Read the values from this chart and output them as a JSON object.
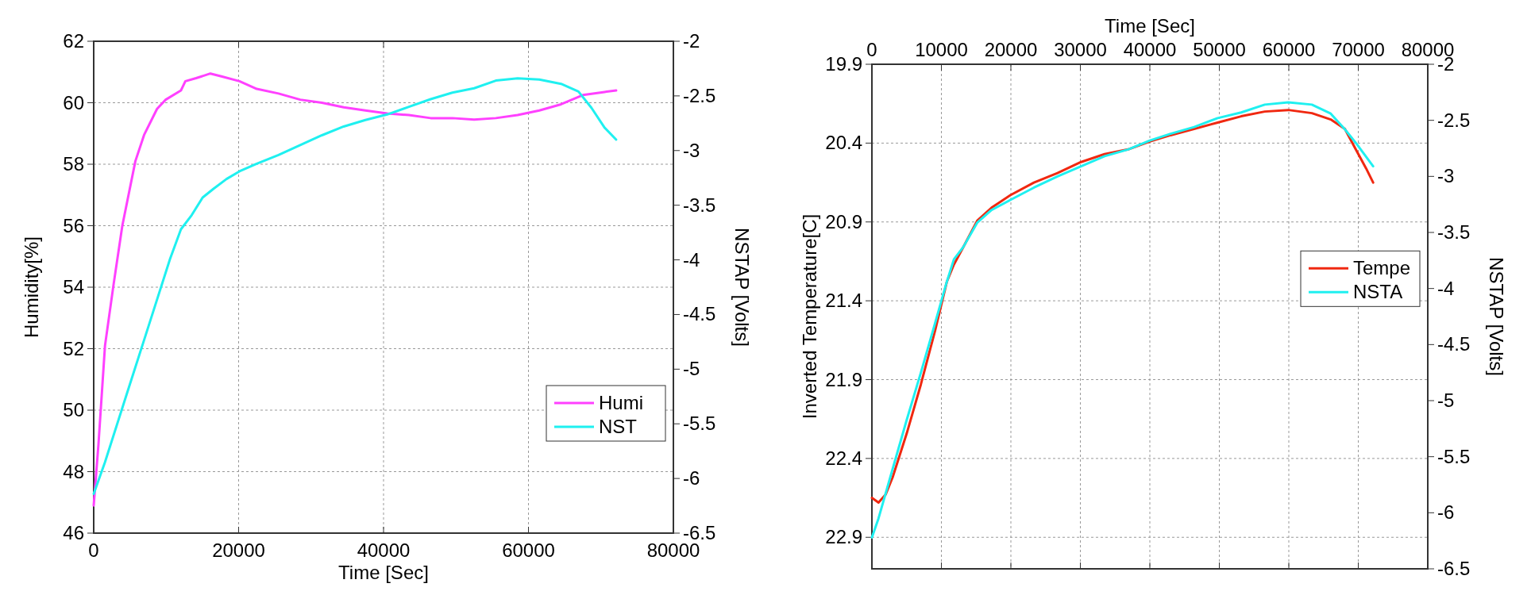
{
  "chart_data": [
    {
      "type": "line",
      "xlabel": "Time [Sec]",
      "ylabel": "Humidity[%]",
      "y2label": "NSTAP [Volts]",
      "xlim": [
        0,
        80000
      ],
      "xticks": [
        0,
        20000,
        40000,
        60000,
        80000
      ],
      "ylim": [
        46,
        62
      ],
      "yticks": [
        46,
        48,
        50,
        52,
        54,
        56,
        58,
        60,
        62
      ],
      "y2lim": [
        -6.5,
        -2
      ],
      "y2ticks": [
        -6.5,
        -6,
        -5.5,
        -5,
        -4.5,
        -4,
        -3.5,
        -3,
        -2.5,
        -2
      ],
      "grid": true,
      "legend": "bottom right",
      "line_style": "solid",
      "marker": "none",
      "series": [
        {
          "name": "Humi",
          "color": "#ff40ff",
          "x": [
            0,
            660,
            1560,
            2750,
            3950,
            5750,
            6950,
            8740,
            9940,
            12040,
            12650,
            14130,
            16100,
            17720,
            20120,
            22500,
            25500,
            28500,
            31500,
            34500,
            37500,
            40500,
            43500,
            46500,
            49500,
            52500,
            55500,
            58500,
            61500,
            64500,
            67500,
            70500,
            72100
          ],
          "values": [
            46.9,
            48.9,
            52.1,
            54.1,
            56.0,
            58.1,
            58.95,
            59.8,
            60.1,
            60.4,
            60.7,
            60.8,
            60.95,
            60.85,
            60.7,
            60.45,
            60.3,
            60.1,
            60.0,
            59.85,
            59.75,
            59.65,
            59.6,
            59.5,
            59.5,
            59.45,
            59.5,
            59.6,
            59.75,
            59.95,
            60.25,
            60.35,
            60.4
          ]
        },
        {
          "name": "NST",
          "color": "#1ff0f0",
          "axis": "y2",
          "x": [
            0,
            1560,
            4550,
            7550,
            10540,
            12040,
            13530,
            15030,
            16530,
            18330,
            20120,
            22500,
            25500,
            28500,
            31500,
            34500,
            37500,
            40500,
            43500,
            46500,
            49500,
            52500,
            55500,
            58500,
            61500,
            64500,
            66900,
            68700,
            70500,
            72100
          ],
          "values": [
            -6.14,
            -5.85,
            -5.23,
            -4.61,
            -3.99,
            -3.72,
            -3.59,
            -3.43,
            -3.35,
            -3.26,
            -3.19,
            -3.12,
            -3.04,
            -2.95,
            -2.86,
            -2.78,
            -2.72,
            -2.67,
            -2.6,
            -2.53,
            -2.47,
            -2.43,
            -2.36,
            -2.34,
            -2.35,
            -2.39,
            -2.46,
            -2.61,
            -2.79,
            -2.9
          ]
        }
      ]
    },
    {
      "type": "line",
      "xlabel": "Time [Sec]",
      "ylabel": "Inverted Temperature[C]",
      "y2label": "NSTAP [Volts]",
      "xlim": [
        0,
        80000
      ],
      "xticks": [
        0,
        10000,
        20000,
        30000,
        40000,
        50000,
        60000,
        70000,
        80000
      ],
      "ylim": [
        23.1,
        19.9
      ],
      "yticks": [
        19.9,
        20.4,
        20.9,
        21.4,
        21.9,
        22.4,
        22.9
      ],
      "y2lim": [
        -6.5,
        -2
      ],
      "y2ticks": [
        -6.5,
        -6,
        -5.5,
        -5,
        -4.5,
        -4,
        -3.5,
        -3,
        -2.5,
        -2
      ],
      "grid": true,
      "legend": "right",
      "line_style": "solid",
      "marker": "none",
      "series": [
        {
          "name": "Tempe",
          "color": "#f02810",
          "x": [
            0,
            950,
            1960,
            2980,
            5020,
            7050,
            9090,
            10780,
            11800,
            13150,
            15190,
            17220,
            19930,
            23320,
            26710,
            30100,
            33490,
            36880,
            40000,
            42980,
            46370,
            49760,
            53150,
            56540,
            59930,
            63320,
            66030,
            68070,
            69760,
            71120,
            72140
          ],
          "values": [
            22.65,
            22.68,
            22.63,
            22.52,
            22.24,
            21.93,
            21.59,
            21.28,
            21.17,
            21.06,
            20.89,
            20.81,
            20.73,
            20.65,
            20.59,
            20.52,
            20.47,
            20.44,
            20.39,
            20.35,
            20.31,
            20.27,
            20.23,
            20.2,
            20.19,
            20.21,
            20.25,
            20.31,
            20.45,
            20.56,
            20.65
          ]
        },
        {
          "name": "NSTA",
          "color": "#1ff0f0",
          "axis": "y2",
          "x": [
            0,
            950,
            2980,
            5020,
            7050,
            9090,
            10780,
            11800,
            13150,
            15190,
            17220,
            19930,
            23320,
            26710,
            30100,
            33490,
            36880,
            40000,
            42980,
            46370,
            49760,
            53150,
            56540,
            59930,
            63320,
            66030,
            68070,
            69760,
            72140
          ],
          "values": [
            -6.22,
            -6.05,
            -5.61,
            -5.17,
            -4.75,
            -4.31,
            -3.94,
            -3.74,
            -3.63,
            -3.41,
            -3.3,
            -3.21,
            -3.1,
            -3.0,
            -2.91,
            -2.82,
            -2.76,
            -2.68,
            -2.62,
            -2.56,
            -2.48,
            -2.43,
            -2.36,
            -2.34,
            -2.36,
            -2.44,
            -2.58,
            -2.71,
            -2.91
          ]
        }
      ]
    }
  ]
}
